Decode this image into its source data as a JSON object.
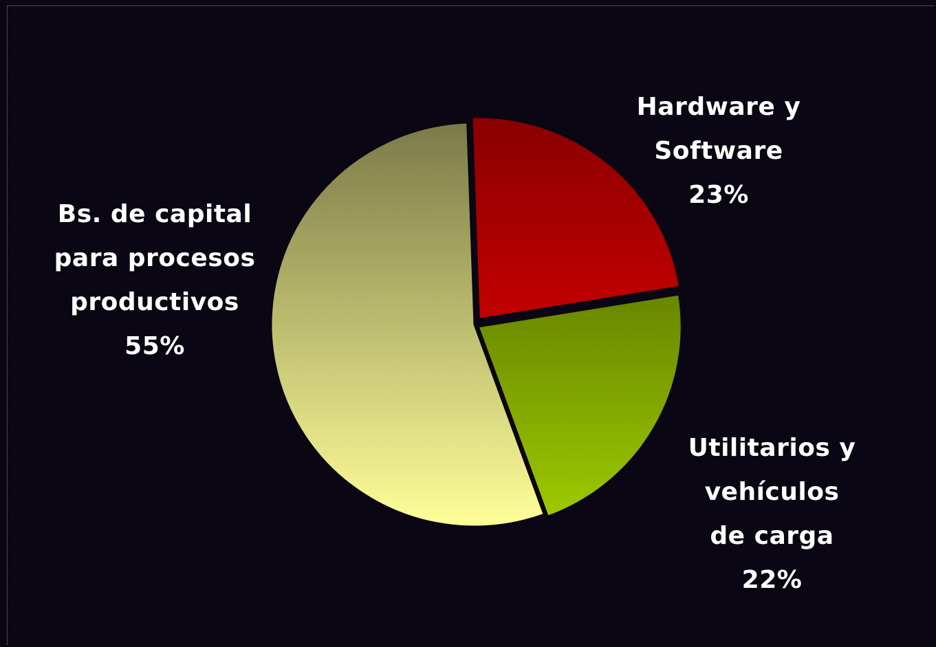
{
  "chart_data": {
    "type": "pie",
    "title": "",
    "slices": [
      {
        "label_lines": [
          "Hardware y",
          "Software"
        ],
        "percent_text": "23%",
        "value": 23,
        "gradient": [
          "#8b0000",
          "#ff0000"
        ]
      },
      {
        "label_lines": [
          "Utilitarios y",
          "vehículos",
          "de carga"
        ],
        "percent_text": "22%",
        "value": 22,
        "gradient": [
          "#3f5200",
          "#a0cc00"
        ]
      },
      {
        "label_lines": [
          "Bs. de capital",
          "para procesos",
          "productivos"
        ],
        "percent_text": "55%",
        "value": 55,
        "gradient": [
          "#7a7a48",
          "#ffff99"
        ]
      }
    ]
  }
}
